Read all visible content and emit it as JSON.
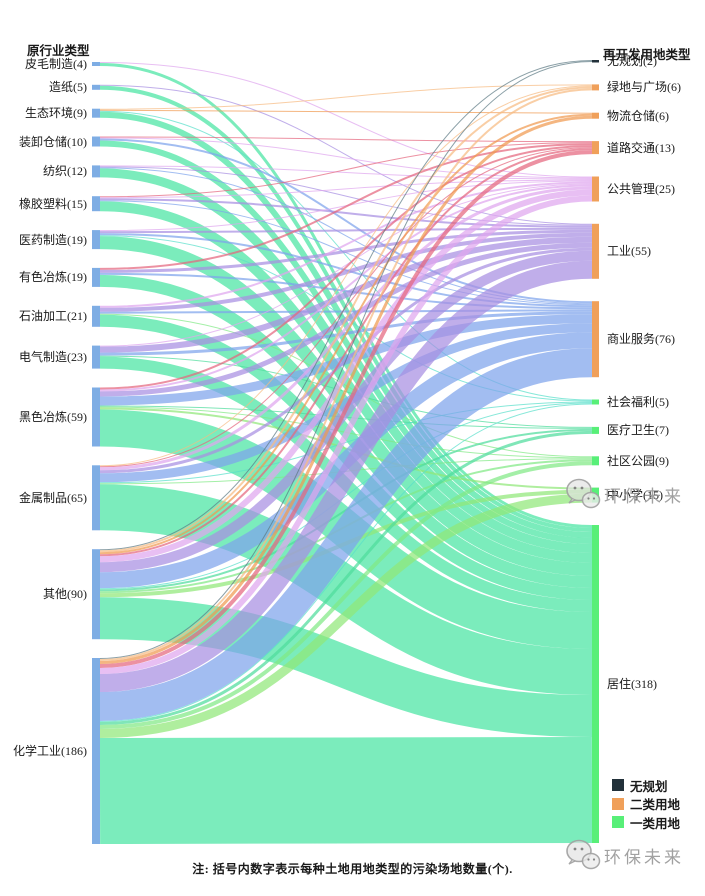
{
  "header": {
    "left": "原行业类型",
    "right": "再开发用地类型"
  },
  "note": "注: 括号内数字表示每种土地用地类型的污染场地数量(个).",
  "watermark": {
    "text": "环保未来",
    "logo": "wechat-sketch-logo",
    "count": 2
  },
  "chart_data": {
    "type": "sankey",
    "title": "",
    "unit": "污染场地数量(个)",
    "left_column_title": "原行业类型",
    "right_column_title": "再开发用地类型",
    "left_node_color": "#7eade4",
    "left_nodes": [
      {
        "label": "皮毛制造",
        "value": 4,
        "display": "皮毛制造(4)"
      },
      {
        "label": "造纸",
        "value": 5,
        "display": "造纸(5)"
      },
      {
        "label": "生态环境",
        "value": 9,
        "display": "生态环境(9)"
      },
      {
        "label": "装卸仓储",
        "value": 10,
        "display": "装卸仓储(10)"
      },
      {
        "label": "纺织",
        "value": 12,
        "display": "纺织(12)"
      },
      {
        "label": "橡胶塑料",
        "value": 15,
        "display": "橡胶塑料(15)"
      },
      {
        "label": "医药制造",
        "value": 19,
        "display": "医药制造(19)"
      },
      {
        "label": "有色冶炼",
        "value": 19,
        "display": "有色冶炼(19)"
      },
      {
        "label": "石油加工",
        "value": 21,
        "display": "石油加工(21)"
      },
      {
        "label": "电气制造",
        "value": 23,
        "display": "电气制造(23)"
      },
      {
        "label": "黑色冶炼",
        "value": 59,
        "display": "黑色冶炼(59)"
      },
      {
        "label": "金属制品",
        "value": 65,
        "display": "金属制品(65)"
      },
      {
        "label": "其他",
        "value": 90,
        "display": "其他(90)"
      },
      {
        "label": "化学工业",
        "value": 186,
        "display": "化学工业(186)"
      }
    ],
    "right_nodes": [
      {
        "label": "无规划",
        "value": 2,
        "display": "无规划(2)",
        "category": "无规划",
        "color": "#22313a",
        "flow_color": "#5d7a84"
      },
      {
        "label": "绿地与广场",
        "value": 6,
        "display": "绿地与广场(6)",
        "category": "二类用地",
        "color": "#f0a05a",
        "flow_color": "#f6bb82"
      },
      {
        "label": "物流仓储",
        "value": 6,
        "display": "物流仓储(6)",
        "category": "二类用地",
        "color": "#f0a05a",
        "flow_color": "#f09a50"
      },
      {
        "label": "道路交通",
        "value": 13,
        "display": "道路交通(13)",
        "category": "二类用地",
        "color": "#f0a05a",
        "flow_color": "#e5677e"
      },
      {
        "label": "公共管理",
        "value": 25,
        "display": "公共管理(25)",
        "category": "二类用地",
        "color": "#f0a05a",
        "flow_color": "#dfa6ee"
      },
      {
        "label": "工业",
        "value": 55,
        "display": "工业(55)",
        "category": "二类用地",
        "color": "#f0a05a",
        "flow_color": "#a88fe2"
      },
      {
        "label": "商业服务",
        "value": 76,
        "display": "商业服务(76)",
        "category": "二类用地",
        "color": "#f0a05a",
        "flow_color": "#7ea3eb"
      },
      {
        "label": "社会福利",
        "value": 5,
        "display": "社会福利(5)",
        "category": "一类用地",
        "color": "#58ef78",
        "flow_color": "#59dfcb"
      },
      {
        "label": "医疗卫生",
        "value": 7,
        "display": "医疗卫生(7)",
        "category": "一类用地",
        "color": "#58ef78",
        "flow_color": "#4fdc9d"
      },
      {
        "label": "社区公园",
        "value": 9,
        "display": "社区公园(9)",
        "category": "一类用地",
        "color": "#58ef78",
        "flow_color": "#81e985"
      },
      {
        "label": "中小学",
        "value": 15,
        "display": "中小学(15)",
        "category": "一类用地",
        "color": "#58ef78",
        "flow_color": "#90e878"
      },
      {
        "label": "居住",
        "value": 318,
        "display": "居住(318)",
        "category": "一类用地",
        "color": "#58ef78",
        "flow_color": "#48e5a2"
      }
    ],
    "links": [
      {
        "source": "皮毛制造",
        "target": "公共管理",
        "value": 1
      },
      {
        "source": "皮毛制造",
        "target": "居住",
        "value": 3
      },
      {
        "source": "造纸",
        "target": "工业",
        "value": 1
      },
      {
        "source": "造纸",
        "target": "居住",
        "value": 4
      },
      {
        "source": "生态环境",
        "target": "绿地与广场",
        "value": 1
      },
      {
        "source": "生态环境",
        "target": "物流仓储",
        "value": 1
      },
      {
        "source": "生态环境",
        "target": "社会福利",
        "value": 1
      },
      {
        "source": "生态环境",
        "target": "居住",
        "value": 6
      },
      {
        "source": "装卸仓储",
        "target": "道路交通",
        "value": 1
      },
      {
        "source": "装卸仓储",
        "target": "公共管理",
        "value": 1
      },
      {
        "source": "装卸仓储",
        "target": "商业服务",
        "value": 2
      },
      {
        "source": "装卸仓储",
        "target": "居住",
        "value": 6
      },
      {
        "source": "纺织",
        "target": "公共管理",
        "value": 1
      },
      {
        "source": "纺织",
        "target": "工业",
        "value": 1
      },
      {
        "source": "纺织",
        "target": "商业服务",
        "value": 1
      },
      {
        "source": "纺织",
        "target": "居住",
        "value": 9
      },
      {
        "source": "橡胶塑料",
        "target": "道路交通",
        "value": 1
      },
      {
        "source": "橡胶塑料",
        "target": "公共管理",
        "value": 1
      },
      {
        "source": "橡胶塑料",
        "target": "工业",
        "value": 2
      },
      {
        "source": "橡胶塑料",
        "target": "商业服务",
        "value": 1
      },
      {
        "source": "橡胶塑料",
        "target": "居住",
        "value": 10
      },
      {
        "source": "医药制造",
        "target": "公共管理",
        "value": 1
      },
      {
        "source": "医药制造",
        "target": "工业",
        "value": 2
      },
      {
        "source": "医药制造",
        "target": "商业服务",
        "value": 2
      },
      {
        "source": "医药制造",
        "target": "社会福利",
        "value": 1
      },
      {
        "source": "医药制造",
        "target": "居住",
        "value": 13
      },
      {
        "source": "有色冶炼",
        "target": "道路交通",
        "value": 2
      },
      {
        "source": "有色冶炼",
        "target": "工业",
        "value": 3
      },
      {
        "source": "有色冶炼",
        "target": "商业服务",
        "value": 2
      },
      {
        "source": "有色冶炼",
        "target": "居住",
        "value": 12
      },
      {
        "source": "石油加工",
        "target": "公共管理",
        "value": 2
      },
      {
        "source": "石油加工",
        "target": "工业",
        "value": 4
      },
      {
        "source": "石油加工",
        "target": "商业服务",
        "value": 2
      },
      {
        "source": "石油加工",
        "target": "社区公园",
        "value": 1
      },
      {
        "source": "石油加工",
        "target": "居住",
        "value": 12
      },
      {
        "source": "电气制造",
        "target": "公共管理",
        "value": 1
      },
      {
        "source": "电气制造",
        "target": "工业",
        "value": 6
      },
      {
        "source": "电气制造",
        "target": "商业服务",
        "value": 3
      },
      {
        "source": "电气制造",
        "target": "医疗卫生",
        "value": 1
      },
      {
        "source": "电气制造",
        "target": "居住",
        "value": 12
      },
      {
        "source": "黑色冶炼",
        "target": "道路交通",
        "value": 2
      },
      {
        "source": "黑色冶炼",
        "target": "公共管理",
        "value": 2
      },
      {
        "source": "黑色冶炼",
        "target": "工业",
        "value": 5
      },
      {
        "source": "黑色冶炼",
        "target": "商业服务",
        "value": 9
      },
      {
        "source": "黑色冶炼",
        "target": "医疗卫生",
        "value": 1
      },
      {
        "source": "黑色冶炼",
        "target": "社区公园",
        "value": 1
      },
      {
        "source": "黑色冶炼",
        "target": "中小学",
        "value": 2
      },
      {
        "source": "黑色冶炼",
        "target": "居住",
        "value": 37
      },
      {
        "source": "金属制品",
        "target": "绿地与广场",
        "value": 1
      },
      {
        "source": "金属制品",
        "target": "道路交通",
        "value": 1
      },
      {
        "source": "金属制品",
        "target": "公共管理",
        "value": 3
      },
      {
        "source": "金属制品",
        "target": "工业",
        "value": 3
      },
      {
        "source": "金属制品",
        "target": "商业服务",
        "value": 9
      },
      {
        "source": "金属制品",
        "target": "社会福利",
        "value": 1
      },
      {
        "source": "金属制品",
        "target": "社区公园",
        "value": 1
      },
      {
        "source": "金属制品",
        "target": "居住",
        "value": 46
      },
      {
        "source": "其他",
        "target": "无规划",
        "value": 1
      },
      {
        "source": "其他",
        "target": "绿地与广场",
        "value": 2
      },
      {
        "source": "其他",
        "target": "物流仓储",
        "value": 2
      },
      {
        "source": "其他",
        "target": "道路交通",
        "value": 2
      },
      {
        "source": "其他",
        "target": "公共管理",
        "value": 6
      },
      {
        "source": "其他",
        "target": "工业",
        "value": 10
      },
      {
        "source": "其他",
        "target": "商业服务",
        "value": 16
      },
      {
        "source": "其他",
        "target": "社会福利",
        "value": 1
      },
      {
        "source": "其他",
        "target": "医疗卫生",
        "value": 2
      },
      {
        "source": "其他",
        "target": "社区公园",
        "value": 2
      },
      {
        "source": "其他",
        "target": "中小学",
        "value": 4
      },
      {
        "source": "其他",
        "target": "居住",
        "value": 42
      },
      {
        "source": "化学工业",
        "target": "无规划",
        "value": 1
      },
      {
        "source": "化学工业",
        "target": "绿地与广场",
        "value": 2
      },
      {
        "source": "化学工业",
        "target": "物流仓储",
        "value": 3
      },
      {
        "source": "化学工业",
        "target": "道路交通",
        "value": 4
      },
      {
        "source": "化学工业",
        "target": "公共管理",
        "value": 6
      },
      {
        "source": "化学工业",
        "target": "工业",
        "value": 18
      },
      {
        "source": "化学工业",
        "target": "商业服务",
        "value": 29
      },
      {
        "source": "化学工业",
        "target": "社会福利",
        "value": 1
      },
      {
        "source": "化学工业",
        "target": "医疗卫生",
        "value": 3
      },
      {
        "source": "化学工业",
        "target": "社区公园",
        "value": 4
      },
      {
        "source": "化学工业",
        "target": "中小学",
        "value": 9
      },
      {
        "source": "化学工业",
        "target": "居住",
        "value": 106
      }
    ],
    "legend": {
      "position": "bottom-right",
      "items": [
        {
          "label": "无规划",
          "color": "#22313a"
        },
        {
          "label": "二类用地",
          "color": "#f0a05a"
        },
        {
          "label": "一类用地",
          "color": "#58ef78"
        }
      ]
    }
  }
}
